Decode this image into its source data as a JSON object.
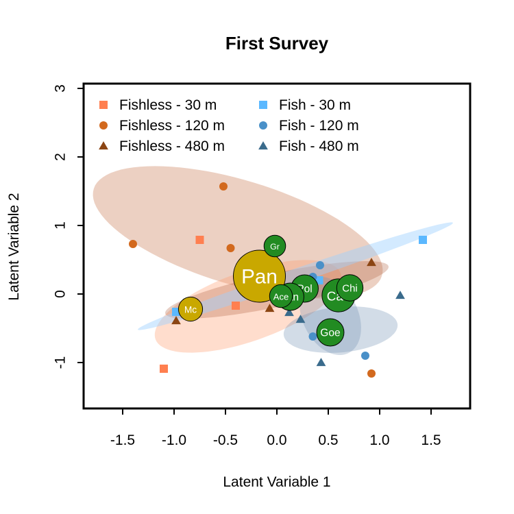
{
  "chart_data": {
    "type": "scatter",
    "title": "First Survey",
    "xlabel": "Latent Variable 1",
    "ylabel": "Latent Variable 2",
    "xlim": [
      -1.88,
      1.88
    ],
    "ylim": [
      -1.67,
      3.07
    ],
    "xticks": [
      -1.5,
      -1.0,
      -0.5,
      0.0,
      0.5,
      1.0,
      1.5
    ],
    "xtick_labels": [
      "-1.5",
      "-1.0",
      "-0.5",
      "0.0",
      "0.5",
      "1.0",
      "1.5"
    ],
    "yticks": [
      -1,
      0,
      1,
      2,
      3
    ],
    "ytick_labels": [
      "-1",
      "0",
      "1",
      "2",
      "3"
    ],
    "legend_position": "top-left",
    "series": [
      {
        "name": "Fishless - 30 m",
        "color": "#FF7F50",
        "shape": "square",
        "points": [
          [
            -0.75,
            0.79
          ],
          [
            -0.4,
            -0.17
          ],
          [
            -1.1,
            -1.09
          ]
        ]
      },
      {
        "name": "Fishless - 120 m",
        "color": "#D2691E",
        "shape": "circle",
        "points": [
          [
            -1.4,
            0.73
          ],
          [
            -0.52,
            1.57
          ],
          [
            -0.45,
            0.67
          ],
          [
            0.92,
            -1.16
          ]
        ]
      },
      {
        "name": "Fishless - 480 m",
        "color": "#8B4513",
        "shape": "triangle",
        "points": [
          [
            -0.98,
            -0.39
          ],
          [
            0.01,
            0.67
          ],
          [
            -0.07,
            -0.21
          ],
          [
            0.92,
            0.46
          ]
        ]
      },
      {
        "name": "Fish - 30 m",
        "color": "#5BB8FF",
        "shape": "square",
        "points": [
          [
            -0.98,
            -0.26
          ],
          [
            0.41,
            0.2
          ],
          [
            1.42,
            0.79
          ]
        ]
      },
      {
        "name": "Fish - 120 m",
        "color": "#4A90C8",
        "shape": "circle",
        "points": [
          [
            0.35,
            0.25
          ],
          [
            0.42,
            0.42
          ],
          [
            0.35,
            -0.62
          ],
          [
            0.86,
            -0.9
          ]
        ]
      },
      {
        "name": "Fish - 480 m",
        "color": "#3A6B8C",
        "shape": "triangle",
        "points": [
          [
            0.12,
            -0.27
          ],
          [
            0.23,
            -0.37
          ],
          [
            0.43,
            -1.0
          ],
          [
            1.2,
            -0.02
          ]
        ]
      }
    ],
    "species": [
      {
        "label": "Pan",
        "x": -0.17,
        "y": 0.26,
        "value": 1.0,
        "color": "#C9A800"
      },
      {
        "label": "Cae",
        "x": 0.6,
        "y": -0.02,
        "value": 0.35,
        "color": "#228B22"
      },
      {
        "label": "Chi",
        "x": 0.71,
        "y": 0.09,
        "value": 0.2,
        "color": "#228B22"
      },
      {
        "label": "Pol",
        "x": 0.27,
        "y": 0.08,
        "value": 0.22,
        "color": "#228B22"
      },
      {
        "label": "Tan",
        "x": 0.13,
        "y": -0.04,
        "value": 0.22,
        "color": "#228B22"
      },
      {
        "label": "Ace",
        "x": 0.04,
        "y": -0.03,
        "value": 0.14,
        "color": "#228B22"
      },
      {
        "label": "Goe",
        "x": 0.52,
        "y": -0.56,
        "value": 0.22,
        "color": "#228B22"
      },
      {
        "label": "Gr",
        "x": -0.02,
        "y": 0.7,
        "value": 0.12,
        "color": "#228B22"
      },
      {
        "label": "Mc",
        "x": -0.84,
        "y": -0.22,
        "value": 0.16,
        "color": "#C9A800"
      }
    ],
    "ellipses": [
      {
        "series": "Fishless - 120 m",
        "color": "#C87850",
        "opacity": 0.35,
        "cx": -0.38,
        "cy": 0.9,
        "a": 1.55,
        "b": 0.72,
        "angle_deg": -28
      },
      {
        "series": "Fishless - 30 m",
        "color": "#FF9F70",
        "opacity": 0.35,
        "cx": -0.28,
        "cy": -0.18,
        "a": 1.03,
        "b": 0.47,
        "angle_deg": 32
      },
      {
        "series": "Fishless - 480 m",
        "color": "#B06040",
        "opacity": 0.3,
        "cx": 0.0,
        "cy": 0.06,
        "a": 1.14,
        "b": 0.24,
        "angle_deg": 18
      },
      {
        "series": "Fish - 30 m",
        "color": "#9ED0FF",
        "opacity": 0.45,
        "cx": 0.18,
        "cy": 0.26,
        "a": 1.72,
        "b": 0.1,
        "angle_deg": 27
      },
      {
        "series": "Fish - 120 m",
        "color": "#7090B0",
        "opacity": 0.3,
        "cx": 0.52,
        "cy": -0.32,
        "a": 0.58,
        "b": 0.28,
        "angle_deg": -78
      },
      {
        "series": "Fish - 480 m",
        "color": "#6A8CB0",
        "opacity": 0.3,
        "cx": 0.62,
        "cy": -0.52,
        "a": 0.56,
        "b": 0.33,
        "angle_deg": 10
      }
    ]
  }
}
